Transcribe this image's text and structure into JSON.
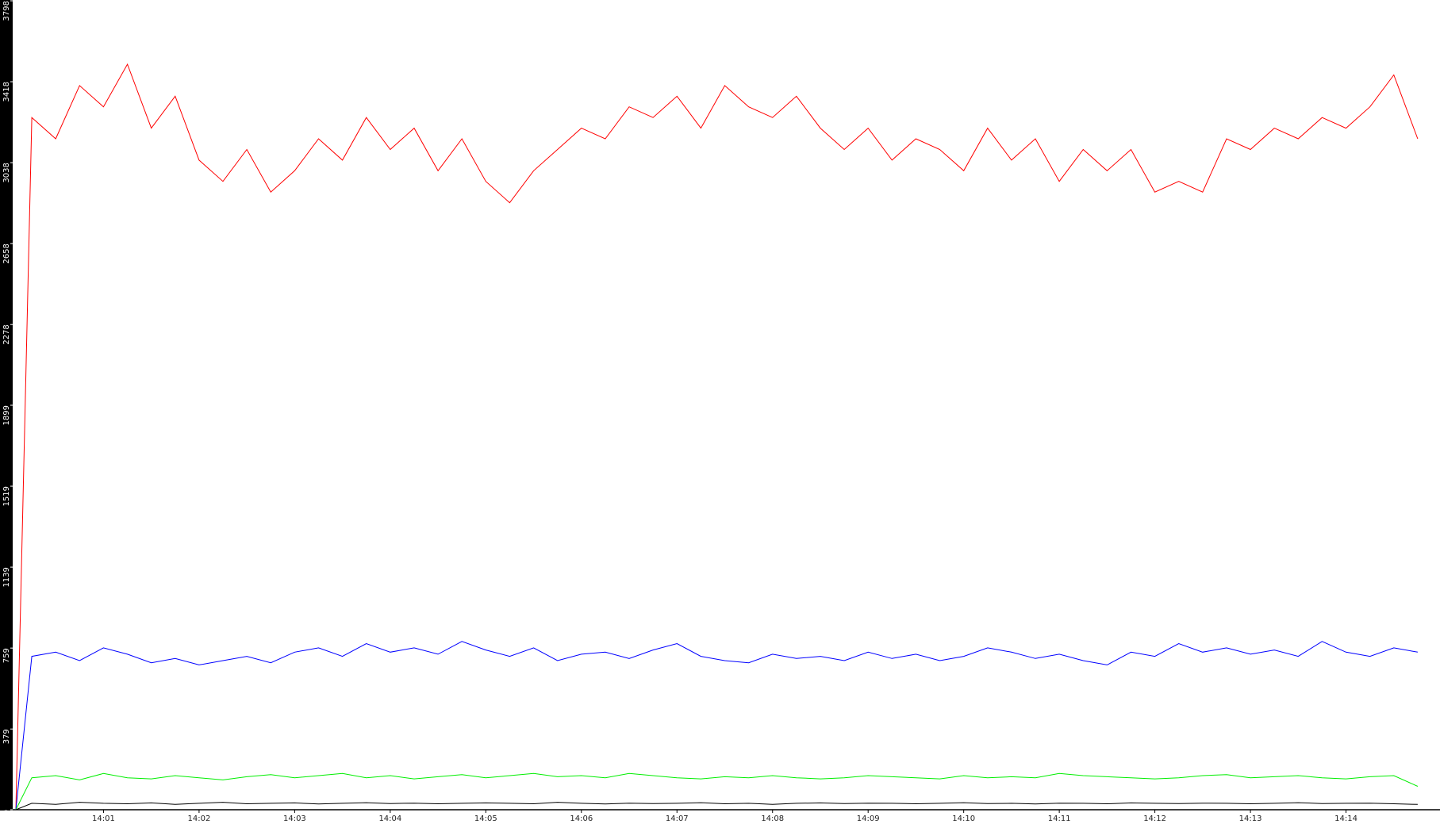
{
  "chart_data": {
    "type": "line",
    "x": [
      "14:00:05",
      "14:00:15",
      "14:00:30",
      "14:00:45",
      "14:01:00",
      "14:01:15",
      "14:01:30",
      "14:01:45",
      "14:02:00",
      "14:02:15",
      "14:02:30",
      "14:02:45",
      "14:03:00",
      "14:03:15",
      "14:03:30",
      "14:03:45",
      "14:04:00",
      "14:04:15",
      "14:04:30",
      "14:04:45",
      "14:05:00",
      "14:05:15",
      "14:05:30",
      "14:05:45",
      "14:06:00",
      "14:06:15",
      "14:06:30",
      "14:06:45",
      "14:07:00",
      "14:07:15",
      "14:07:30",
      "14:07:45",
      "14:08:00",
      "14:08:15",
      "14:08:30",
      "14:08:45",
      "14:09:00",
      "14:09:15",
      "14:09:30",
      "14:09:45",
      "14:10:00",
      "14:10:15",
      "14:10:30",
      "14:10:45",
      "14:11:00",
      "14:11:15",
      "14:11:30",
      "14:11:45",
      "14:12:00",
      "14:12:15",
      "14:12:30",
      "14:12:45",
      "14:13:00",
      "14:13:15",
      "14:13:30",
      "14:13:45",
      "14:14:00",
      "14:14:15",
      "14:14:30",
      "14:14:45"
    ],
    "series": [
      {
        "color": "#ff0000",
        "values": [
          0,
          3250,
          3150,
          3400,
          3300,
          3500,
          3200,
          3350,
          3050,
          2950,
          3100,
          2900,
          3000,
          3150,
          3050,
          3250,
          3100,
          3200,
          3000,
          3150,
          2950,
          2850,
          3000,
          3100,
          3200,
          3150,
          3300,
          3250,
          3350,
          3200,
          3400,
          3300,
          3250,
          3350,
          3200,
          3100,
          3200,
          3050,
          3150,
          3100,
          3000,
          3200,
          3050,
          3150,
          2950,
          3100,
          3000,
          3100,
          2900,
          2950,
          2900,
          3150,
          3100,
          3200,
          3150,
          3250,
          3200,
          3300,
          3450,
          3150
        ]
      },
      {
        "color": "#0000ff",
        "values": [
          0,
          720,
          740,
          700,
          760,
          730,
          690,
          710,
          680,
          700,
          720,
          690,
          740,
          760,
          720,
          780,
          740,
          760,
          730,
          790,
          750,
          720,
          760,
          700,
          730,
          740,
          710,
          750,
          780,
          720,
          700,
          690,
          730,
          710,
          720,
          700,
          740,
          710,
          730,
          700,
          720,
          760,
          740,
          710,
          730,
          700,
          680,
          740,
          720,
          780,
          740,
          760,
          730,
          750,
          720,
          790,
          740,
          720,
          760,
          740
        ]
      },
      {
        "color": "#00ee00",
        "values": [
          0,
          150,
          160,
          140,
          170,
          150,
          145,
          160,
          150,
          140,
          155,
          165,
          150,
          160,
          170,
          150,
          160,
          145,
          155,
          165,
          150,
          160,
          170,
          155,
          160,
          150,
          170,
          160,
          150,
          145,
          155,
          150,
          160,
          150,
          145,
          150,
          160,
          155,
          150,
          145,
          160,
          150,
          155,
          150,
          170,
          160,
          155,
          150,
          145,
          150,
          160,
          165,
          150,
          155,
          160,
          150,
          145,
          155,
          160,
          110
        ]
      },
      {
        "color": "#000000",
        "values": [
          0,
          30,
          25,
          35,
          30,
          28,
          32,
          25,
          30,
          35,
          28,
          30,
          32,
          27,
          30,
          33,
          29,
          31,
          28,
          30,
          32,
          30,
          28,
          35,
          30,
          27,
          31,
          29,
          30,
          33,
          28,
          30,
          25,
          30,
          32,
          29,
          31,
          30,
          28,
          30,
          33,
          29,
          30,
          27,
          31,
          30,
          28,
          32,
          30,
          29,
          31,
          30,
          28,
          30,
          33,
          29,
          30,
          31,
          28,
          25
        ]
      }
    ],
    "xlim": [
      "14:00:03",
      "14:14:59"
    ],
    "xticks": [
      "14:01",
      "14:02",
      "14:03",
      "14:04",
      "14:05",
      "14:06",
      "14:07",
      "14:08",
      "14:09",
      "14:10",
      "14:11",
      "14:12",
      "14:13",
      "14:14"
    ],
    "ylim": [
      0,
      3798
    ],
    "yticks": [
      0,
      379,
      759,
      1139,
      1519,
      1899,
      2278,
      2658,
      3038,
      3418,
      3798
    ]
  }
}
